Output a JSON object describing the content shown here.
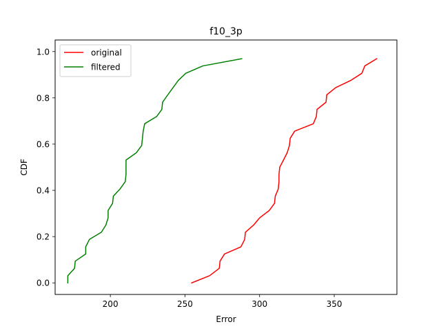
{
  "chart_data": {
    "type": "line",
    "title": "f10_3p",
    "xlabel": "Error",
    "ylabel": "CDF",
    "xlim": [
      163,
      392
    ],
    "ylim": [
      -0.05,
      1.05
    ],
    "x_ticks": [
      200,
      250,
      300,
      350
    ],
    "y_ticks": [
      0.0,
      0.2,
      0.4,
      0.6,
      0.8,
      1.0
    ],
    "x_tick_labels": [
      "200",
      "250",
      "300",
      "350"
    ],
    "y_tick_labels": [
      "0.0",
      "0.2",
      "0.4",
      "0.6",
      "0.8",
      "1.0"
    ],
    "grid": false,
    "legend_position": "upper-left",
    "series": [
      {
        "name": "original",
        "color": "#ff0000",
        "points": [
          [
            254.5,
            0.0
          ],
          [
            266.5,
            0.031
          ],
          [
            273.0,
            0.063
          ],
          [
            273.5,
            0.094
          ],
          [
            276.5,
            0.125
          ],
          [
            287.5,
            0.156
          ],
          [
            290.0,
            0.188
          ],
          [
            290.5,
            0.219
          ],
          [
            296.0,
            0.25
          ],
          [
            300.0,
            0.281
          ],
          [
            306.5,
            0.313
          ],
          [
            310.0,
            0.344
          ],
          [
            310.5,
            0.375
          ],
          [
            312.5,
            0.406
          ],
          [
            313.0,
            0.438
          ],
          [
            313.0,
            0.469
          ],
          [
            313.5,
            0.5
          ],
          [
            316.0,
            0.531
          ],
          [
            318.5,
            0.563
          ],
          [
            320.0,
            0.594
          ],
          [
            320.5,
            0.625
          ],
          [
            323.5,
            0.656
          ],
          [
            336.0,
            0.688
          ],
          [
            338.0,
            0.719
          ],
          [
            338.5,
            0.75
          ],
          [
            344.5,
            0.781
          ],
          [
            345.0,
            0.813
          ],
          [
            351.0,
            0.844
          ],
          [
            361.0,
            0.875
          ],
          [
            368.5,
            0.906
          ],
          [
            370.5,
            0.938
          ],
          [
            378.5,
            0.969
          ]
        ]
      },
      {
        "name": "filtered",
        "color": "#008000",
        "points": [
          [
            171.5,
            0.0
          ],
          [
            171.5,
            0.031
          ],
          [
            176.0,
            0.063
          ],
          [
            176.5,
            0.094
          ],
          [
            183.5,
            0.125
          ],
          [
            183.5,
            0.156
          ],
          [
            186.0,
            0.188
          ],
          [
            194.0,
            0.219
          ],
          [
            197.0,
            0.25
          ],
          [
            198.5,
            0.281
          ],
          [
            198.5,
            0.313
          ],
          [
            201.5,
            0.344
          ],
          [
            202.0,
            0.375
          ],
          [
            206.5,
            0.406
          ],
          [
            210.0,
            0.438
          ],
          [
            210.5,
            0.469
          ],
          [
            210.5,
            0.5
          ],
          [
            210.5,
            0.531
          ],
          [
            217.5,
            0.563
          ],
          [
            221.0,
            0.594
          ],
          [
            221.5,
            0.625
          ],
          [
            222.0,
            0.656
          ],
          [
            223.0,
            0.688
          ],
          [
            231.0,
            0.719
          ],
          [
            234.5,
            0.75
          ],
          [
            235.0,
            0.781
          ],
          [
            238.5,
            0.813
          ],
          [
            245.5,
            0.875
          ],
          [
            250.5,
            0.906
          ],
          [
            262.0,
            0.938
          ],
          [
            288.0,
            0.969
          ]
        ]
      }
    ]
  }
}
